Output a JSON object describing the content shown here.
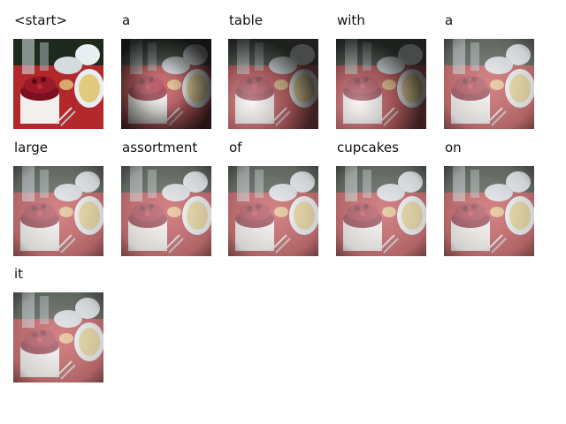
{
  "caption_tokens": [
    {
      "word": "<start>",
      "attention": "none"
    },
    {
      "word": "a",
      "attention": "center-bright"
    },
    {
      "word": "table",
      "attention": "left-bright"
    },
    {
      "word": "with",
      "attention": "left-bright"
    },
    {
      "word": "a",
      "attention": "diffuse"
    },
    {
      "word": "large",
      "attention": "diffuse"
    },
    {
      "word": "assortment",
      "attention": "diffuse"
    },
    {
      "word": "of",
      "attention": "diffuse"
    },
    {
      "word": "cupcakes",
      "attention": "diffuse"
    },
    {
      "word": "on",
      "attention": "diffuse"
    },
    {
      "word": "it",
      "attention": "diffuse"
    }
  ],
  "colors": {
    "tablecloth": "#b3282b",
    "cake": "#f2f0ec",
    "berries": "#7a1020",
    "plate": "#e8eef2",
    "fruit": "#e2c97c",
    "background": "#1d2a1c"
  },
  "overlay_icon": "attention-heatmap"
}
